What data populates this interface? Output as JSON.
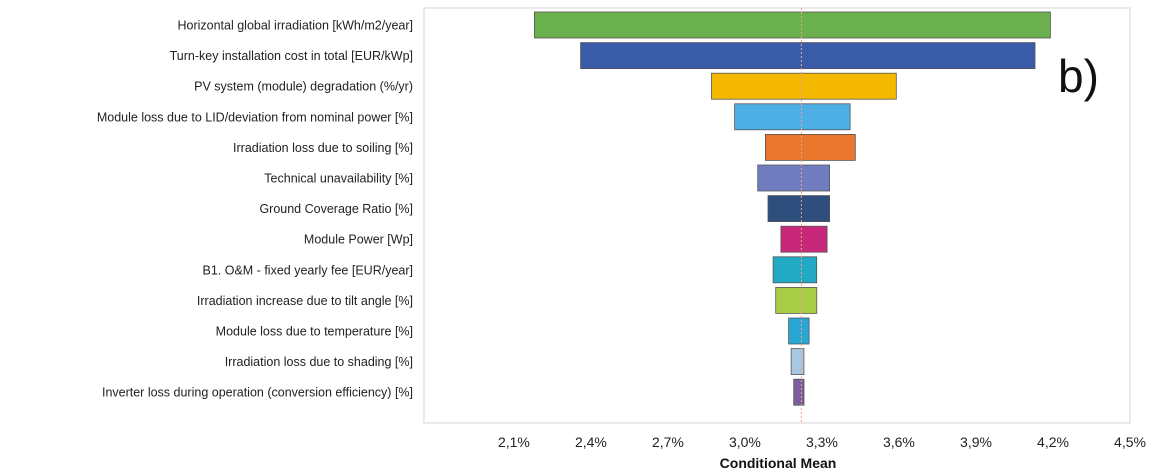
{
  "chart_data": {
    "type": "bar",
    "orientation": "horizontal",
    "style": "tornado",
    "panel_label": "b)",
    "xlabel": "Conditional Mean",
    "xlim": [
      1.75,
      4.5
    ],
    "x_ticks": [
      2.1,
      2.4,
      2.7,
      3.0,
      3.3,
      3.6,
      3.9,
      4.2,
      4.5
    ],
    "x_tick_labels": [
      "2,1%",
      "2,4%",
      "2,7%",
      "3,0%",
      "3,3%",
      "3,6%",
      "3,9%",
      "4,2%",
      "4,5%"
    ],
    "reference_line": 3.22,
    "grid": false,
    "categories": [
      "Horizontal global irradiation [kWh/m2/year]",
      "Turn-key installation cost in total [EUR/kWp]",
      "PV system (module) degradation (%/yr)",
      "Module loss due to LID/deviation from nominal power [%]",
      "Irradiation loss due to soiling [%]",
      "Technical unavailability [%]",
      "Ground Coverage Ratio [%]",
      "Module Power [Wp]",
      "B1. O&M - fixed yearly fee [EUR/year]",
      "Irradiation increase due to tilt angle [%]",
      "Module loss due to temperature [%]",
      "Irradiation loss due to shading [%]",
      "Inverter loss during operation (conversion efficiency) [%]"
    ],
    "low": [
      2.18,
      2.36,
      2.87,
      2.96,
      3.08,
      3.05,
      3.09,
      3.14,
      3.11,
      3.12,
      3.17,
      3.18,
      3.19
    ],
    "high": [
      4.19,
      4.13,
      3.59,
      3.41,
      3.43,
      3.33,
      3.33,
      3.32,
      3.28,
      3.28,
      3.25,
      3.23,
      3.23
    ],
    "colors": [
      "#6ab04c",
      "#3a5ca8",
      "#f5b800",
      "#4eaee6",
      "#e8762d",
      "#6f7dc0",
      "#2e4e7e",
      "#c8287a",
      "#22a9c4",
      "#a8cc44",
      "#2aa6d4",
      "#a9c6e2",
      "#7b5e9e"
    ],
    "stroke": "#555555"
  }
}
